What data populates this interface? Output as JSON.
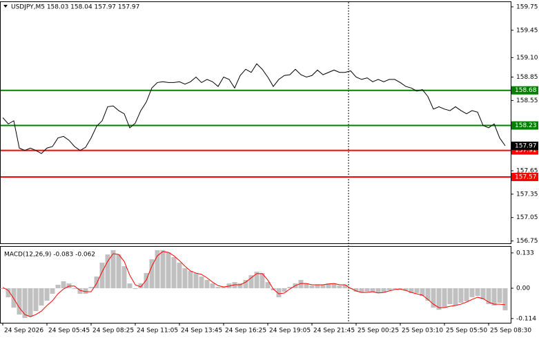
{
  "chart_data": [
    {
      "type": "line",
      "title": "USDJPY,M5  158.03 158.04 157.97 157.97",
      "color": "#000000",
      "categories": [
        "24 Sep 2026",
        null,
        null,
        null,
        null,
        null,
        null,
        null,
        "24 Sep 05:45",
        null,
        null,
        null,
        null,
        null,
        null,
        null,
        "24 Sep 08:25",
        null,
        null,
        null,
        null,
        null,
        null,
        null,
        "24 Sep 11:05",
        null,
        null,
        null,
        null,
        null,
        null,
        null,
        "24 Sep 13:45",
        null,
        null,
        null,
        null,
        null,
        null,
        null,
        "24 Sep 16:25",
        null,
        null,
        null,
        null,
        null,
        null,
        null,
        "24 Sep 19:05",
        null,
        null,
        null,
        null,
        null,
        null,
        null,
        "24 Sep 21:45",
        null,
        null,
        null,
        null,
        null,
        null,
        null,
        "25 Sep 00:25",
        null,
        null,
        null,
        null,
        null,
        null,
        null,
        "25 Sep 03:10",
        null,
        null,
        null,
        null,
        null,
        null,
        null,
        "25 Sep 05:50",
        null,
        null,
        null,
        null,
        null,
        null,
        null,
        "25 Sep 08:30",
        null,
        null,
        null
      ],
      "values": [
        158.33,
        158.25,
        158.29,
        157.94,
        157.91,
        157.94,
        157.91,
        157.87,
        157.94,
        157.96,
        158.07,
        158.09,
        158.04,
        157.96,
        157.91,
        157.95,
        158.07,
        158.22,
        158.29,
        158.47,
        158.48,
        158.42,
        158.38,
        158.2,
        158.26,
        158.42,
        158.53,
        158.71,
        158.78,
        158.79,
        158.78,
        158.78,
        158.79,
        158.76,
        158.79,
        158.85,
        158.78,
        158.82,
        158.79,
        158.73,
        158.85,
        158.82,
        158.71,
        158.87,
        158.95,
        158.91,
        159.02,
        158.95,
        158.85,
        158.73,
        158.82,
        158.87,
        158.88,
        158.95,
        158.88,
        158.85,
        158.87,
        158.94,
        158.88,
        158.91,
        158.94,
        158.91,
        158.91,
        158.93,
        158.85,
        158.82,
        158.84,
        158.79,
        158.82,
        158.79,
        158.82,
        158.82,
        158.78,
        158.73,
        158.71,
        158.67,
        158.69,
        158.6,
        158.44,
        158.47,
        158.44,
        158.42,
        158.47,
        158.42,
        158.38,
        158.42,
        158.4,
        158.23,
        158.2,
        158.25,
        158.07,
        157.97
      ],
      "ylim": [
        156.72,
        159.82
      ],
      "yticks": [
        159.75,
        159.45,
        {
          "value": 159.1,
          "label": "159.10"
        },
        158.85,
        158.55,
        157.65,
        157.35,
        157.05,
        156.75
      ],
      "levels": [
        {
          "value": 158.68,
          "color": "#008000"
        },
        {
          "value": 158.23,
          "color": "#008000"
        },
        {
          "value": 157.91,
          "color": "#ff0000"
        },
        {
          "value": 157.57,
          "color": "#ff0000"
        }
      ]
    },
    {
      "type": "macd",
      "title": "MACD(12,26,9) -0.083 -0.062",
      "ylim": [
        -0.13,
        0.156
      ],
      "yticks": [
        0.133,
        {
          "value": 0,
          "label": "0.00"
        },
        -0.114
      ],
      "series": [
        {
          "style": "bar",
          "color": "#c0c0c0",
          "values": [
            -0.003,
            -0.034,
            -0.073,
            -0.099,
            -0.112,
            -0.107,
            -0.086,
            -0.065,
            -0.047,
            -0.021,
            0.013,
            0.026,
            0.018,
            -0.003,
            -0.021,
            -0.021,
            0.005,
            0.044,
            0.096,
            0.127,
            0.143,
            0.127,
            0.083,
            0.018,
            -0.003,
            0.018,
            0.057,
            0.109,
            0.143,
            0.143,
            0.135,
            0.117,
            0.096,
            0.075,
            0.065,
            0.057,
            0.044,
            0.031,
            0.018,
            0.005,
            0.005,
            0.018,
            0.023,
            0.018,
            0.031,
            0.049,
            0.062,
            0.057,
            0.023,
            -0.008,
            -0.034,
            -0.013,
            0.005,
            0.018,
            0.031,
            0.018,
            0.01,
            0.013,
            0.013,
            0.018,
            0.018,
            0.01,
            0.013,
            -0.003,
            -0.013,
            -0.016,
            -0.013,
            -0.013,
            -0.018,
            -0.016,
            -0.008,
            -0.003,
            -0.003,
            -0.01,
            -0.018,
            -0.018,
            -0.029,
            -0.047,
            -0.073,
            -0.081,
            -0.073,
            -0.06,
            -0.065,
            -0.055,
            -0.049,
            -0.034,
            -0.029,
            -0.042,
            -0.06,
            -0.065,
            -0.055,
            -0.083
          ]
        },
        {
          "style": "line",
          "color": "#ff0000",
          "values": [
            0.003,
            -0.008,
            -0.039,
            -0.073,
            -0.099,
            -0.107,
            -0.099,
            -0.086,
            -0.065,
            -0.047,
            -0.021,
            -0.003,
            0.008,
            0.008,
            -0.008,
            -0.013,
            -0.013,
            0.018,
            0.062,
            0.101,
            0.13,
            0.127,
            0.101,
            0.049,
            0.013,
            0.005,
            0.031,
            0.083,
            0.122,
            0.138,
            0.135,
            0.122,
            0.104,
            0.083,
            0.065,
            0.057,
            0.052,
            0.039,
            0.023,
            0.01,
            0.005,
            0.008,
            0.013,
            0.013,
            0.023,
            0.039,
            0.055,
            0.055,
            0.031,
            -0.003,
            -0.021,
            -0.018,
            -0.003,
            0.01,
            0.018,
            0.018,
            0.013,
            0.013,
            0.013,
            0.016,
            0.018,
            0.013,
            0.013,
            0,
            -0.01,
            -0.016,
            -0.016,
            -0.013,
            -0.018,
            -0.016,
            -0.01,
            -0.005,
            -0.003,
            -0.008,
            -0.016,
            -0.021,
            -0.026,
            -0.042,
            -0.06,
            -0.073,
            -0.073,
            -0.068,
            -0.065,
            -0.06,
            -0.052,
            -0.042,
            -0.034,
            -0.039,
            -0.052,
            -0.06,
            -0.06,
            -0.062
          ]
        }
      ]
    }
  ]
}
